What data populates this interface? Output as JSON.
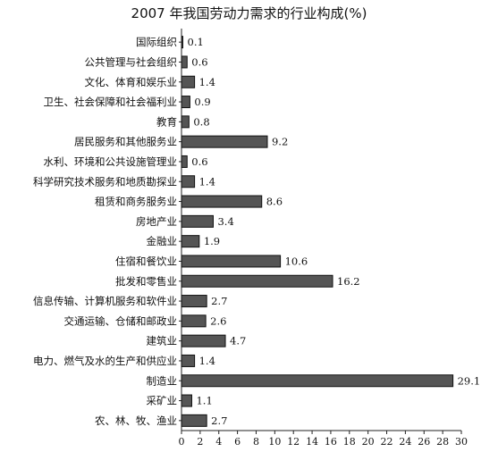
{
  "chart_data": {
    "type": "bar",
    "orientation": "horizontal",
    "title": "2007 年我国劳动力需求的行业构成(%)",
    "xlabel": "",
    "ylabel": "",
    "xlim": [
      0,
      30
    ],
    "xticks": [
      0,
      2,
      4,
      6,
      8,
      10,
      12,
      14,
      16,
      18,
      20,
      22,
      24,
      26,
      28,
      30
    ],
    "grid": false,
    "bar_color": "#555555",
    "categories": [
      "国际组织",
      "公共管理与社会组织",
      "文化、体育和娱乐业",
      "卫生、社会保障和社会福利业",
      "教育",
      "居民服务和其他服务业",
      "水利、环境和公共设施管理业",
      "科学研究技术服务和地质勘探业",
      "租赁和商务服务业",
      "房地产业",
      "金融业",
      "住宿和餐饮业",
      "批发和零售业",
      "信息传输、计算机服务和软件业",
      "交通运输、仓储和邮政业",
      "建筑业",
      "电力、燃气及水的生产和供应业",
      "制造业",
      "采矿业",
      "农、林、牧、渔业"
    ],
    "values": [
      0.1,
      0.6,
      1.4,
      0.9,
      0.8,
      9.2,
      0.6,
      1.4,
      8.6,
      3.4,
      1.9,
      10.6,
      16.2,
      2.7,
      2.6,
      4.7,
      1.4,
      29.1,
      1.1,
      2.7
    ],
    "value_labels": [
      "0.1",
      "0.6",
      "1.4",
      "0.9",
      "0.8",
      "9.2",
      "0.6",
      "1.4",
      "8.6",
      "3.4",
      "1.9",
      "10.6",
      "16.2",
      "2.7",
      "2.6",
      "4.7",
      "1.4",
      "29.1",
      "1.1",
      "2.7"
    ]
  }
}
